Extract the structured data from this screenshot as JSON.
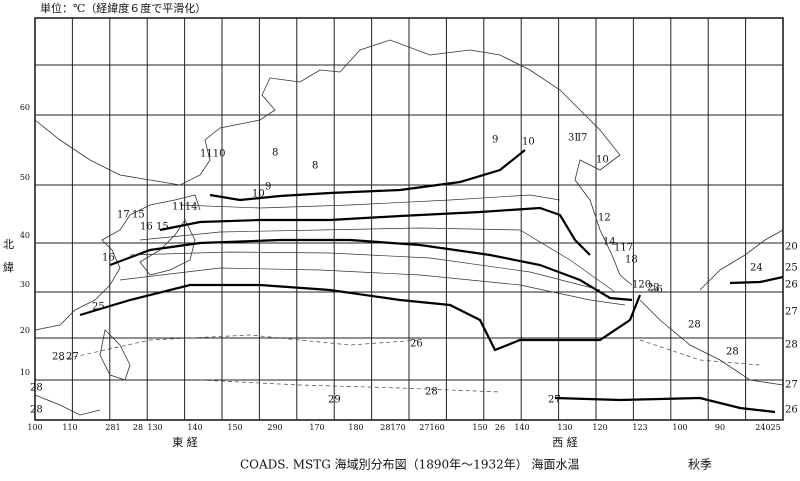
{
  "header": {
    "unit": "単位：℃（経緯度６度で平滑化）"
  },
  "map": {
    "lat_labels": [
      "60",
      "50",
      "40",
      "30",
      "20",
      "10"
    ],
    "lat_word": [
      "北",
      "緯"
    ],
    "lon_labels": [
      "100",
      "110",
      "281",
      "28",
      "130",
      "140",
      "150",
      "290",
      "170",
      "180",
      "28170",
      "27160",
      "150",
      "26",
      "140",
      "130",
      "120",
      "123",
      "100",
      "90",
      "24025"
    ],
    "east": "東 経",
    "west": "西 経",
    "contour_labels": [
      "9",
      "10",
      "3Ⅱ7",
      "10",
      "8",
      "8",
      "9",
      "10",
      "1110",
      "1114",
      "17",
      "15",
      "16",
      "15",
      "16",
      "25",
      "28",
      "27",
      "28",
      "28",
      "12",
      "14",
      "117",
      "18",
      "120",
      "22",
      "26",
      "26",
      "28",
      "28",
      "29",
      "28",
      "27",
      "24",
      "20",
      "25",
      "26",
      "27",
      "28",
      "27",
      "26"
    ]
  },
  "caption": {
    "source": "COADS. MSTG 海域別分布図（1890年～1932年） 海面水温",
    "season": "秋季"
  }
}
